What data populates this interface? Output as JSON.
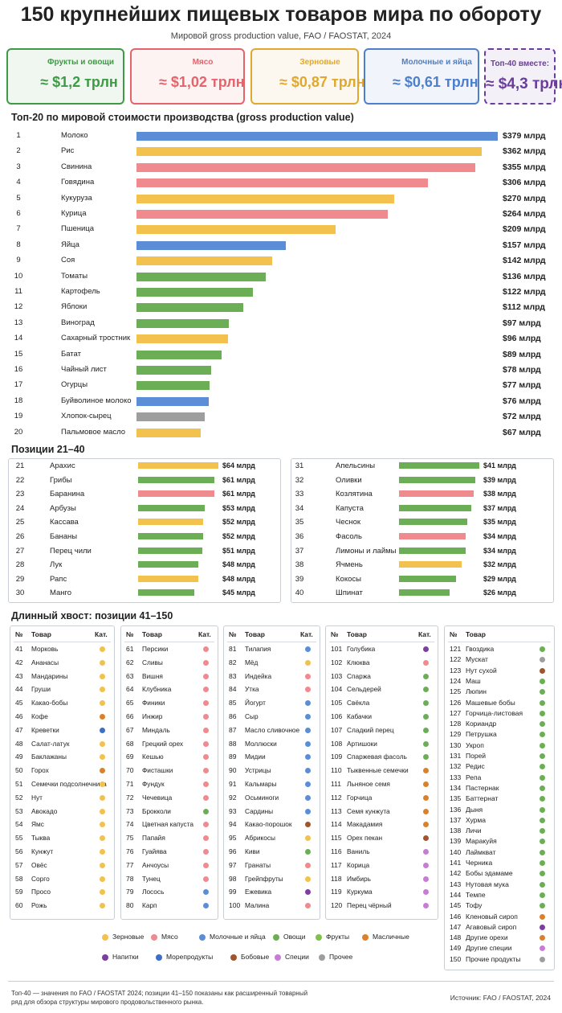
{
  "header": {
    "title": "150 крупнейших пищевых товаров мира по обороту",
    "subtitle": "Мировой gross production value, FAO / FAOSTAT, 2024"
  },
  "cards": [
    {
      "label": "Фрукты и овощи",
      "value": "≈ $1,2 трлн",
      "color": "#3f9a45"
    },
    {
      "label": "Мясо",
      "value": "≈ $1,02 трлн",
      "color": "#e5646c"
    },
    {
      "label": "Зерновые",
      "value": "≈ $0,87 трлн",
      "color": "#e0a82e"
    },
    {
      "label": "Молочные и яйца",
      "value": "≈ $0,61 трлн",
      "color": "#4d7fcc"
    },
    {
      "label": "Топ-40 вместе:",
      "value": "≈ $4,3 трлн",
      "color": "#6a3d9a"
    }
  ],
  "chart_data": [
    {
      "type": "bar",
      "title": "Топ-20 по мировой стоимости производства (gross production value)",
      "ranks": [
        1,
        2,
        3,
        4,
        5,
        6,
        7,
        8,
        9,
        10,
        11,
        12,
        13,
        14,
        15,
        16,
        17,
        18,
        19,
        20
      ],
      "categories": [
        "Молоко",
        "Рис",
        "Свинина",
        "Говядина",
        "Кукуруза",
        "Курица",
        "Пшеница",
        "Яйца",
        "Соя",
        "Томаты",
        "Картофель",
        "Яблоки",
        "Виноград",
        "Сахарный тростник",
        "Батат",
        "Чайный лист",
        "Огурцы",
        "Буйволиное молоко",
        "Хлопок-сырец",
        "Пальмовое масло"
      ],
      "values": [
        379,
        362,
        355,
        306,
        270,
        264,
        209,
        157,
        142,
        136,
        122,
        112,
        97,
        96,
        89,
        78,
        77,
        76,
        72,
        67
      ],
      "value_labels": [
        "$379 млрд",
        "$362 млрд",
        "$355 млрд",
        "$306 млрд",
        "$270 млрд",
        "$264 млрд",
        "$209 млрд",
        "$157 млрд",
        "$142 млрд",
        "$136 млрд",
        "$122 млрд",
        "$112 млрд",
        "$97 млрд",
        "$96 млрд",
        "$89 млрд",
        "$78 млрд",
        "$77 млрд",
        "$76 млрд",
        "$72 млрд",
        "$67 млрд"
      ],
      "colors": [
        "#5b8ed6",
        "#f2c14e",
        "#ef8a8f",
        "#ef8a8f",
        "#f2c14e",
        "#ef8a8f",
        "#f2c14e",
        "#5b8ed6",
        "#f2c14e",
        "#6cae55",
        "#6cae55",
        "#6cae55",
        "#6cae55",
        "#f2c14e",
        "#6cae55",
        "#6cae55",
        "#6cae55",
        "#5b8ed6",
        "#9e9e9e",
        "#f2c14e"
      ]
    },
    {
      "type": "bar",
      "title": "Позиции 21–40",
      "ranks": [
        21,
        22,
        23,
        24,
        25,
        26,
        27,
        28,
        29,
        30
      ],
      "categories": [
        "Арахис",
        "Грибы",
        "Баранина",
        "Арбузы",
        "Кассава",
        "Бананы",
        "Перец чили",
        "Лук",
        "Рапс",
        "Манго"
      ],
      "values": [
        64,
        61,
        61,
        53,
        52,
        52,
        51,
        48,
        48,
        45
      ],
      "value_labels": [
        "$64 млрд",
        "$61 млрд",
        "$61 млрд",
        "$53 млрд",
        "$52 млрд",
        "$52 млрд",
        "$51 млрд",
        "$48 млрд",
        "$48 млрд",
        "$45 млрд"
      ],
      "colors": [
        "#f2c14e",
        "#6cae55",
        "#ef8a8f",
        "#6cae55",
        "#f2c14e",
        "#6cae55",
        "#6cae55",
        "#6cae55",
        "#f2c14e",
        "#6cae55"
      ]
    },
    {
      "type": "bar",
      "ranks": [
        31,
        32,
        33,
        34,
        35,
        36,
        37,
        38,
        39,
        40
      ],
      "categories": [
        "Апельсины",
        "Оливки",
        "Козлятина",
        "Капуста",
        "Чеснок",
        "Фасоль",
        "Лимоны и лаймы",
        "Ячмень",
        "Кокосы",
        "Шпинат"
      ],
      "values": [
        41,
        39,
        38,
        37,
        35,
        34,
        34,
        32,
        29,
        26
      ],
      "value_labels": [
        "$41 млрд",
        "$39 млрд",
        "$38 млрд",
        "$37 млрд",
        "$35 млрд",
        "$34 млрд",
        "$34 млрд",
        "$32 млрд",
        "$29 млрд",
        "$26 млрд"
      ],
      "colors": [
        "#6cae55",
        "#6cae55",
        "#ef8a8f",
        "#6cae55",
        "#6cae55",
        "#ef8a8f",
        "#6cae55",
        "#f2c14e",
        "#6cae55",
        "#6cae55"
      ]
    }
  ],
  "long_tail": {
    "title": "Длинный хвост: позиции 41–150",
    "columns": [
      {
        "headers": [
          "№",
          "Товар",
          "Кат."
        ],
        "items": [
          {
            "no": 41,
            "name": "Морковь",
            "color": "#f2c14e"
          },
          {
            "no": 42,
            "name": "Ананасы",
            "color": "#f2c14e"
          },
          {
            "no": 43,
            "name": "Мандарины",
            "color": "#f2c14e"
          },
          {
            "no": 44,
            "name": "Груши",
            "color": "#f2c14e"
          },
          {
            "no": 45,
            "name": "Какао-бобы",
            "color": "#f2c14e"
          },
          {
            "no": 46,
            "name": "Кофе",
            "color": "#d9822b"
          },
          {
            "no": 47,
            "name": "Креветки",
            "color": "#3d6fc9"
          },
          {
            "no": 48,
            "name": "Салат-латук",
            "color": "#f2c14e"
          },
          {
            "no": 49,
            "name": "Баклажаны",
            "color": "#f2c14e"
          },
          {
            "no": 50,
            "name": "Горох",
            "color": "#d9822b"
          },
          {
            "no": 51,
            "name": "Семечки подсолнечника",
            "color": "#f2c14e"
          },
          {
            "no": 52,
            "name": "Нут",
            "color": "#f2c14e"
          },
          {
            "no": 53,
            "name": "Авокадо",
            "color": "#f2c14e"
          },
          {
            "no": 54,
            "name": "Ямс",
            "color": "#f2c14e"
          },
          {
            "no": 55,
            "name": "Тыква",
            "color": "#f2c14e"
          },
          {
            "no": 56,
            "name": "Кунжут",
            "color": "#f2c14e"
          },
          {
            "no": 57,
            "name": "Овёс",
            "color": "#f2c14e"
          },
          {
            "no": 58,
            "name": "Сорго",
            "color": "#f2c14e"
          },
          {
            "no": 59,
            "name": "Просо",
            "color": "#f2c14e"
          },
          {
            "no": 60,
            "name": "Рожь",
            "color": "#f2c14e"
          }
        ]
      },
      {
        "headers": [
          "№",
          "Товар",
          "Кат."
        ],
        "items": [
          {
            "no": 61,
            "name": "Персики",
            "color": "#ef8a8f"
          },
          {
            "no": 62,
            "name": "Сливы",
            "color": "#ef8a8f"
          },
          {
            "no": 63,
            "name": "Вишня",
            "color": "#ef8a8f"
          },
          {
            "no": 64,
            "name": "Клубника",
            "color": "#ef8a8f"
          },
          {
            "no": 65,
            "name": "Финики",
            "color": "#ef8a8f"
          },
          {
            "no": 66,
            "name": "Инжир",
            "color": "#ef8a8f"
          },
          {
            "no": 67,
            "name": "Миндаль",
            "color": "#ef8a8f"
          },
          {
            "no": 68,
            "name": "Грецкий орех",
            "color": "#ef8a8f"
          },
          {
            "no": 69,
            "name": "Кешью",
            "color": "#ef8a8f"
          },
          {
            "no": 70,
            "name": "Фисташки",
            "color": "#ef8a8f"
          },
          {
            "no": 71,
            "name": "Фундук",
            "color": "#ef8a8f"
          },
          {
            "no": 72,
            "name": "Чечевица",
            "color": "#ef8a8f"
          },
          {
            "no": 73,
            "name": "Брокколи",
            "color": "#6cae55"
          },
          {
            "no": 74,
            "name": "Цветная капуста",
            "color": "#ef8a8f"
          },
          {
            "no": 75,
            "name": "Папайя",
            "color": "#ef8a8f"
          },
          {
            "no": 76,
            "name": "Гуайява",
            "color": "#ef8a8f"
          },
          {
            "no": 77,
            "name": "Анчоусы",
            "color": "#ef8a8f"
          },
          {
            "no": 78,
            "name": "Тунец",
            "color": "#ef8a8f"
          },
          {
            "no": 79,
            "name": "Лосось",
            "color": "#5b8ed6"
          },
          {
            "no": 80,
            "name": "Карп",
            "color": "#5b8ed6"
          }
        ]
      },
      {
        "headers": [
          "№",
          "Товар",
          "Кат."
        ],
        "items": [
          {
            "no": 81,
            "name": "Тилапия",
            "color": "#5b8ed6"
          },
          {
            "no": 82,
            "name": "Мёд",
            "color": "#f2c14e"
          },
          {
            "no": 83,
            "name": "Индейка",
            "color": "#ef8a8f"
          },
          {
            "no": 84,
            "name": "Утка",
            "color": "#ef8a8f"
          },
          {
            "no": 85,
            "name": "Йогурт",
            "color": "#5b8ed6"
          },
          {
            "no": 86,
            "name": "Сыр",
            "color": "#5b8ed6"
          },
          {
            "no": 87,
            "name": "Масло сливочное",
            "color": "#5b8ed6"
          },
          {
            "no": 88,
            "name": "Моллюски",
            "color": "#5b8ed6"
          },
          {
            "no": 89,
            "name": "Мидии",
            "color": "#5b8ed6"
          },
          {
            "no": 90,
            "name": "Устрицы",
            "color": "#5b8ed6"
          },
          {
            "no": 91,
            "name": "Кальмары",
            "color": "#5b8ed6"
          },
          {
            "no": 92,
            "name": "Осьминоги",
            "color": "#5b8ed6"
          },
          {
            "no": 93,
            "name": "Сардины",
            "color": "#5b8ed6"
          },
          {
            "no": 94,
            "name": "Какао-порошок",
            "color": "#a0562c"
          },
          {
            "no": 95,
            "name": "Абрикосы",
            "color": "#f2c14e"
          },
          {
            "no": 96,
            "name": "Киви",
            "color": "#6cae55"
          },
          {
            "no": 97,
            "name": "Гранаты",
            "color": "#ef8a8f"
          },
          {
            "no": 98,
            "name": "Грейпфруты",
            "color": "#f2c14e"
          },
          {
            "no": 99,
            "name": "Ежевика",
            "color": "#7b3fa0"
          },
          {
            "no": 100,
            "name": "Малина",
            "color": "#ef8a8f"
          }
        ]
      },
      {
        "headers": [
          "№",
          "Товар",
          "Кат."
        ],
        "items": [
          {
            "no": 101,
            "name": "Голубика",
            "color": "#7b3fa0"
          },
          {
            "no": 102,
            "name": "Клюква",
            "color": "#ef8a8f"
          },
          {
            "no": 103,
            "name": "Спаржа",
            "color": "#6cae55"
          },
          {
            "no": 104,
            "name": "Сельдерей",
            "color": "#6cae55"
          },
          {
            "no": 105,
            "name": "Свёкла",
            "color": "#6cae55"
          },
          {
            "no": 106,
            "name": "Кабачки",
            "color": "#6cae55"
          },
          {
            "no": 107,
            "name": "Сладкий перец",
            "color": "#6cae55"
          },
          {
            "no": 108,
            "name": "Артишоки",
            "color": "#6cae55"
          },
          {
            "no": 109,
            "name": "Спаржевая фасоль",
            "color": "#6cae55"
          },
          {
            "no": 110,
            "name": "Тыквенные семечки",
            "color": "#d9822b"
          },
          {
            "no": 111,
            "name": "Льняное семя",
            "color": "#d9822b"
          },
          {
            "no": 112,
            "name": "Горчица",
            "color": "#d9822b"
          },
          {
            "no": 113,
            "name": "Семя кунжута",
            "color": "#d9822b"
          },
          {
            "no": 114,
            "name": "Макадамия",
            "color": "#d9822b"
          },
          {
            "no": 115,
            "name": "Орех пекан",
            "color": "#a0562c"
          },
          {
            "no": 116,
            "name": "Ваниль",
            "color": "#c77dd6"
          },
          {
            "no": 117,
            "name": "Корица",
            "color": "#c77dd6"
          },
          {
            "no": 118,
            "name": "Имбирь",
            "color": "#c77dd6"
          },
          {
            "no": 119,
            "name": "Куркума",
            "color": "#c77dd6"
          },
          {
            "no": 120,
            "name": "Перец чёрный",
            "color": "#c77dd6"
          }
        ]
      },
      {
        "headers": [
          "№",
          "Товар"
        ],
        "items": [
          {
            "no": 121,
            "name": "Гвоздика",
            "color": "#6cae55"
          },
          {
            "no": 122,
            "name": "Мускат",
            "color": "#9e9e9e"
          },
          {
            "no": 123,
            "name": "Нут сухой",
            "color": "#a0562c"
          },
          {
            "no": 124,
            "name": "Маш",
            "color": "#6cae55"
          },
          {
            "no": 125,
            "name": "Люпин",
            "color": "#6cae55"
          },
          {
            "no": 126,
            "name": "Машевые бобы",
            "color": "#6cae55"
          },
          {
            "no": 127,
            "name": "Горчица-листовая",
            "color": "#6cae55"
          },
          {
            "no": 128,
            "name": "Кориандр",
            "color": "#6cae55"
          },
          {
            "no": 129,
            "name": "Петрушка",
            "color": "#6cae55"
          },
          {
            "no": 130,
            "name": "Укроп",
            "color": "#6cae55"
          },
          {
            "no": 131,
            "name": "Порей",
            "color": "#6cae55"
          },
          {
            "no": 132,
            "name": "Редис",
            "color": "#6cae55"
          },
          {
            "no": 133,
            "name": "Репа",
            "color": "#6cae55"
          },
          {
            "no": 134,
            "name": "Пастернак",
            "color": "#6cae55"
          },
          {
            "no": 135,
            "name": "Баттернат",
            "color": "#6cae55"
          },
          {
            "no": 136,
            "name": "Дыня",
            "color": "#6cae55"
          },
          {
            "no": 137,
            "name": "Хурма",
            "color": "#6cae55"
          },
          {
            "no": 138,
            "name": "Личи",
            "color": "#6cae55"
          },
          {
            "no": 139,
            "name": "Маракуйя",
            "color": "#6cae55"
          },
          {
            "no": 140,
            "name": "Лаймкват",
            "color": "#6cae55"
          },
          {
            "no": 141,
            "name": "Черника",
            "color": "#6cae55"
          },
          {
            "no": 142,
            "name": "Бобы эдамаме",
            "color": "#6cae55"
          },
          {
            "no": 143,
            "name": "Нутовая мука",
            "color": "#6cae55"
          },
          {
            "no": 144,
            "name": "Темпе",
            "color": "#6cae55"
          },
          {
            "no": 145,
            "name": "Тофу",
            "color": "#6cae55"
          },
          {
            "no": 146,
            "name": "Кленовый сироп",
            "color": "#d9822b"
          },
          {
            "no": 147,
            "name": "Агавовый сироп",
            "color": "#7b3fa0"
          },
          {
            "no": 148,
            "name": "Другие орехи",
            "color": "#d9822b"
          },
          {
            "no": 149,
            "name": "Другие специи",
            "color": "#c77dd6"
          },
          {
            "no": 150,
            "name": "Прочие продукты",
            "color": "#9e9e9e"
          }
        ]
      }
    ]
  },
  "legend": [
    {
      "name": "Зерновые",
      "color": "#f2c14e"
    },
    {
      "name": "Мясо",
      "color": "#ef8a8f"
    },
    {
      "name": "Молочные и яйца",
      "color": "#5b8ed6"
    },
    {
      "name": "Овощи",
      "color": "#6cae55"
    },
    {
      "name": "Фрукты",
      "color": "#7fc24a"
    },
    {
      "name": "Масличные",
      "color": "#d9822b"
    },
    {
      "name": "Напитки",
      "color": "#7b3fa0"
    },
    {
      "name": "Морепродукты",
      "color": "#3d6fc9"
    },
    {
      "name": "Бобовые",
      "color": "#a0562c"
    },
    {
      "name": "Специи",
      "color": "#c77dd6"
    },
    {
      "name": "Прочее",
      "color": "#9e9e9e"
    }
  ],
  "footer": {
    "note": "Топ-40 — значения по FAO / FAOSTAT 2024; позиции 41–150 показаны как расширенный товарный ряд для обзора структуры мирового продовольственного рынка.",
    "source": "Источник: FAO / FAOSTAT, 2024"
  }
}
